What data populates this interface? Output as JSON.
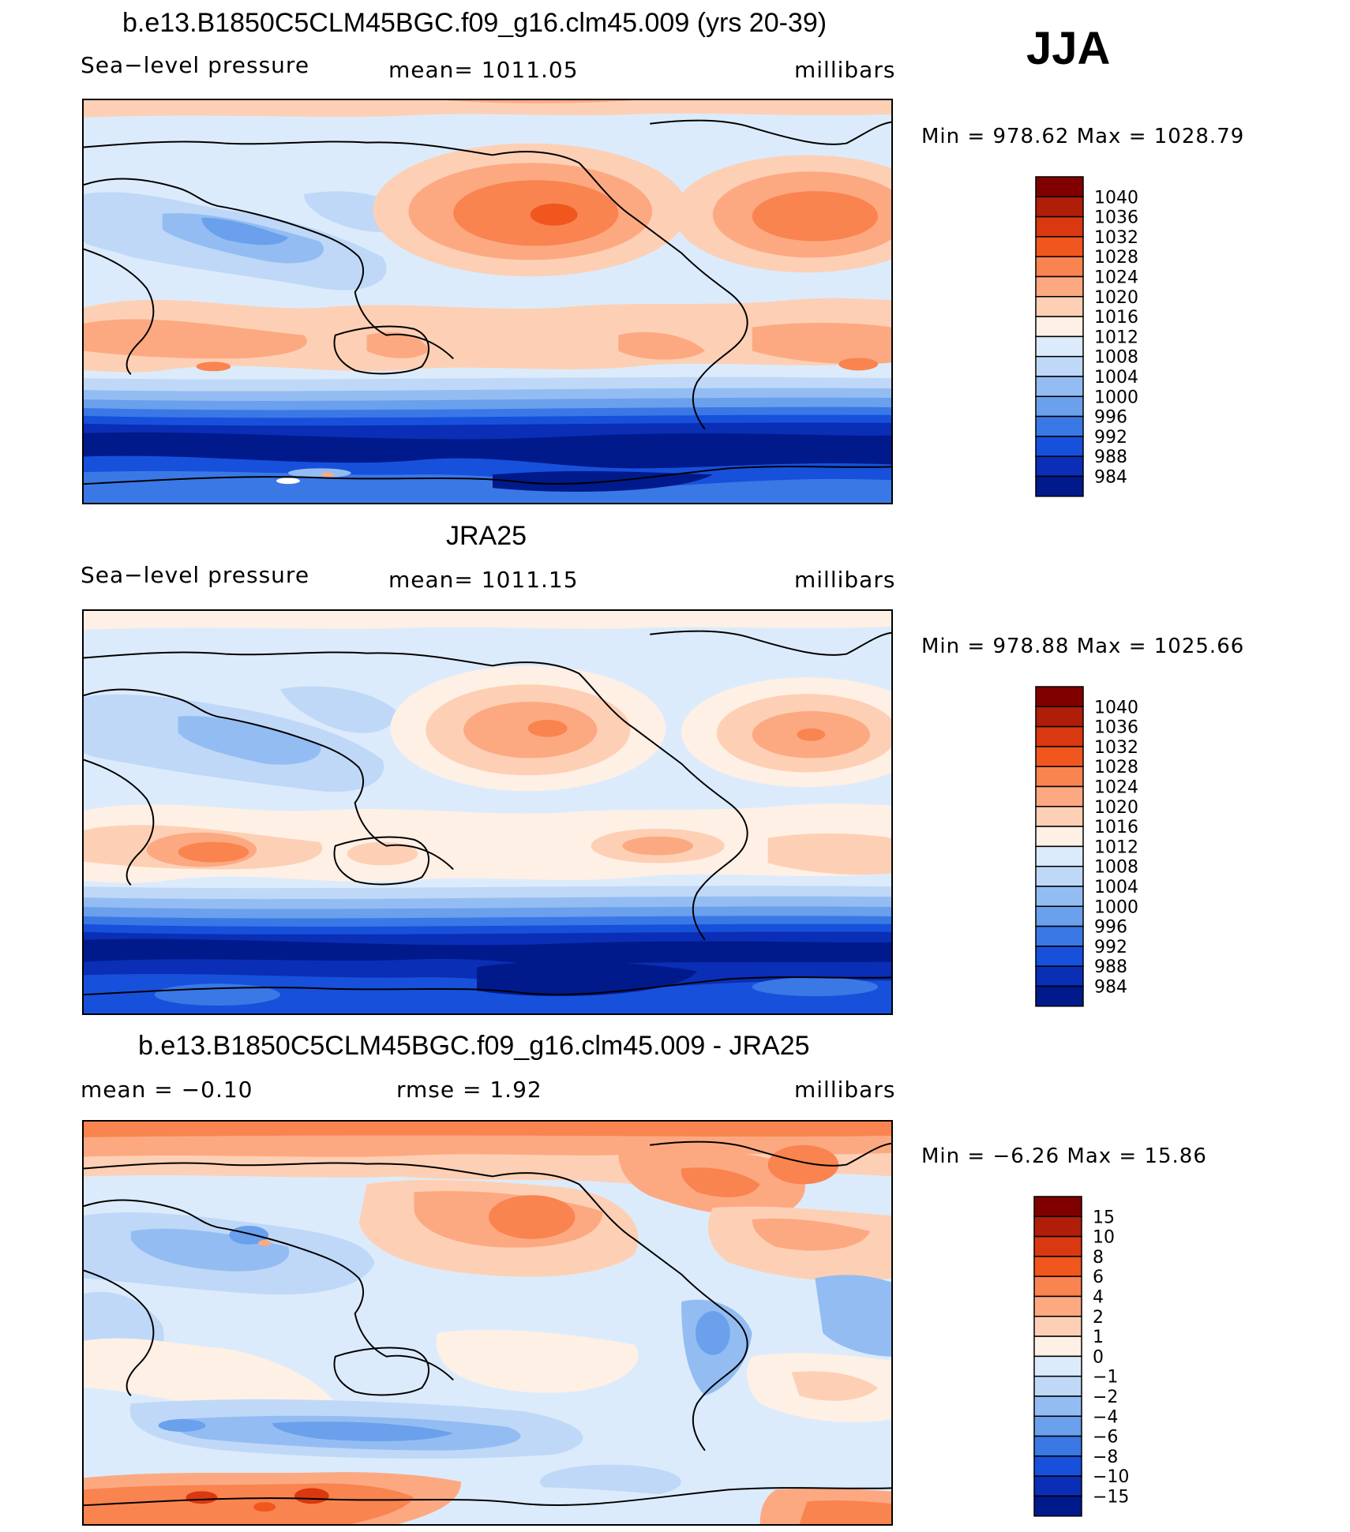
{
  "season": "JJA",
  "panels": [
    {
      "title": "b.e13.B1850C5CLM45BGC.f09_g16.clm45.009 (yrs 20-39)",
      "left_label": "Sea−level pressure",
      "center_label": "mean=  1011.05",
      "units": "millibars",
      "minmax": "Min  =  978.62  Max  =  1028.79",
      "colorbar": {
        "levels": [
          "1040",
          "1036",
          "1032",
          "1028",
          "1024",
          "1020",
          "1016",
          "1012",
          "1008",
          "1004",
          "1000",
          "996",
          "992",
          "988",
          "984"
        ],
        "colors": [
          "#800000",
          "#b01e0a",
          "#d93810",
          "#f0561e",
          "#f9844f",
          "#fca982",
          "#fdd0b5",
          "#fff0e6",
          "#dcebfb",
          "#bfd8f7",
          "#93bdf2",
          "#6aa0ec",
          "#3a78e6",
          "#1750db",
          "#0a2eb5",
          "#001a8c"
        ]
      }
    },
    {
      "title": "JRA25",
      "left_label": "Sea−level pressure",
      "center_label": "mean=  1011.15",
      "units": "millibars",
      "minmax": "Min  =  978.88  Max  =  1025.66",
      "colorbar": {
        "levels": [
          "1040",
          "1036",
          "1032",
          "1028",
          "1024",
          "1020",
          "1016",
          "1012",
          "1008",
          "1004",
          "1000",
          "996",
          "992",
          "988",
          "984"
        ],
        "colors": [
          "#800000",
          "#b01e0a",
          "#d93810",
          "#f0561e",
          "#f9844f",
          "#fca982",
          "#fdd0b5",
          "#fff0e6",
          "#dcebfb",
          "#bfd8f7",
          "#93bdf2",
          "#6aa0ec",
          "#3a78e6",
          "#1750db",
          "#0a2eb5",
          "#001a8c"
        ]
      }
    },
    {
      "title": "b.e13.B1850C5CLM45BGC.f09_g16.clm45.009 - JRA25",
      "left_label": "mean  =    −0.10",
      "center_label": "rmse  =      1.92",
      "units": "millibars",
      "minmax": "Min  =    −6.26  Max  =     15.86",
      "colorbar": {
        "levels": [
          "15",
          "10",
          "8",
          "6",
          "4",
          "2",
          "1",
          "0",
          "−1",
          "−2",
          "−4",
          "−6",
          "−8",
          "−10",
          "−15"
        ],
        "colors": [
          "#800000",
          "#b01e0a",
          "#d93810",
          "#f0561e",
          "#f9844f",
          "#fca982",
          "#fdd0b5",
          "#fff0e6",
          "#dcebfb",
          "#bfd8f7",
          "#93bdf2",
          "#6aa0ec",
          "#3a78e6",
          "#1750db",
          "#0a2eb5",
          "#001a8c"
        ]
      }
    }
  ]
}
